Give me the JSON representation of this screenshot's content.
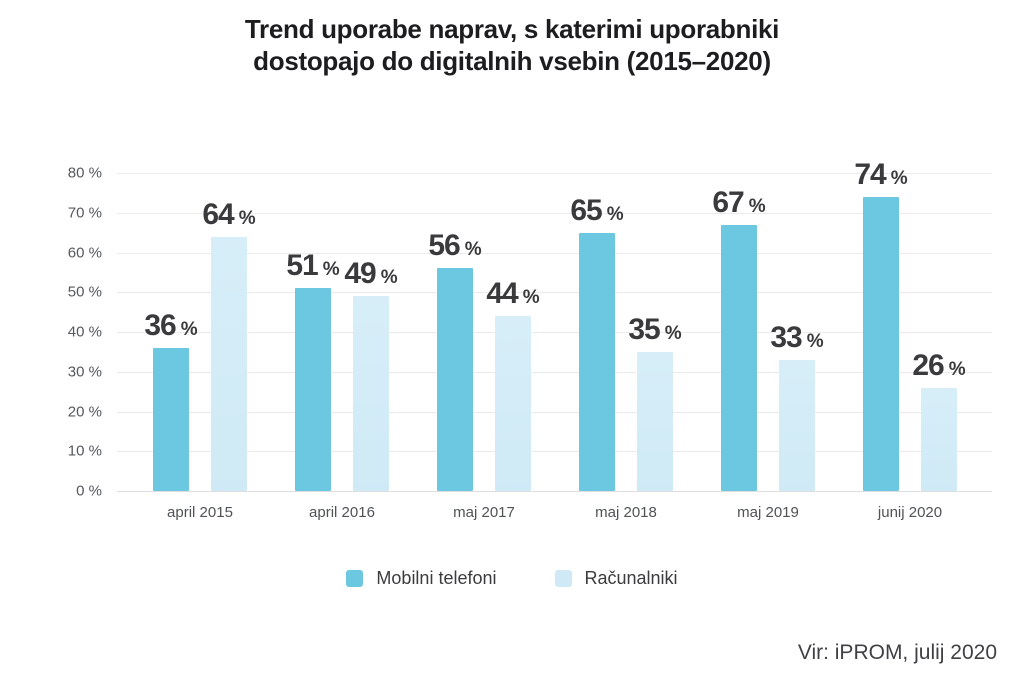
{
  "chart_data": {
    "type": "bar",
    "title": "Trend uporabe naprav, s katerimi uporabniki dostopajo do digitalnih vsebin (2015–2020)",
    "title_lines": [
      "Trend uporabe naprav, s katerimi uporabniki",
      "dostopajo do digitalnih vsebin (2015–2020)"
    ],
    "categories": [
      "april 2015",
      "april 2016",
      "maj 2017",
      "maj 2018",
      "maj 2019",
      "junij 2020"
    ],
    "series": [
      {
        "name": "Mobilni telefoni",
        "color": "#6cc8e1",
        "values": [
          36,
          51,
          56,
          65,
          67,
          74
        ]
      },
      {
        "name": "Računalniki",
        "color": "#cfeaf6",
        "values": [
          64,
          49,
          44,
          35,
          33,
          26
        ]
      }
    ],
    "value_suffix": "%",
    "xlabel": "",
    "ylabel": "",
    "ylim": [
      0,
      80
    ],
    "ytick_step": 10,
    "yticks": [
      "80 %",
      "70 %",
      "60 %",
      "50 %",
      "40 %",
      "30 %",
      "20 %",
      "10 %",
      "0 %"
    ],
    "grid": true,
    "legend_position": "bottom"
  },
  "source": {
    "text": "Vir: iPROM, julij 2020"
  },
  "colors": {
    "background": "#ffffff",
    "title_text": "#1d1d1f",
    "axis_label_text": "#55585c",
    "value_label_text": "#3a3a3c",
    "gridline": "#ebebeb",
    "baseline": "#dedede",
    "legend_text": "#3c3c3e",
    "source_text": "#414145",
    "series_mobilni": "#6cc8e1",
    "series_racunalniki": "#cfeaf6"
  }
}
